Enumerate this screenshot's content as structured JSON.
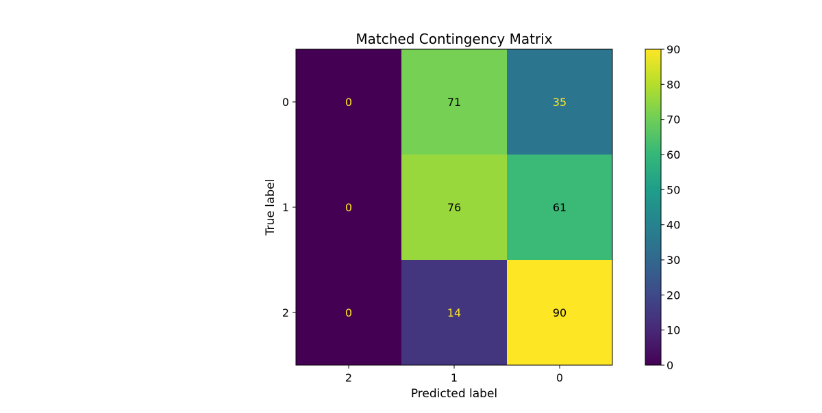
{
  "chart_data": {
    "type": "heatmap",
    "title": "Matched Contingency Matrix",
    "xlabel": "Predicted label",
    "ylabel": "True label",
    "x_tick_labels": [
      "2",
      "1",
      "0"
    ],
    "y_tick_labels": [
      "0",
      "1",
      "2"
    ],
    "values": [
      [
        0,
        71,
        35
      ],
      [
        0,
        76,
        61
      ],
      [
        0,
        14,
        90
      ]
    ],
    "colormap": "viridis",
    "colorbar": {
      "range": [
        0,
        90
      ],
      "ticks": [
        0,
        10,
        20,
        30,
        40,
        50,
        60,
        70,
        80,
        90
      ]
    },
    "text_colors": {
      "dark_cell": "#fde725",
      "light_cell": "#000000"
    }
  }
}
